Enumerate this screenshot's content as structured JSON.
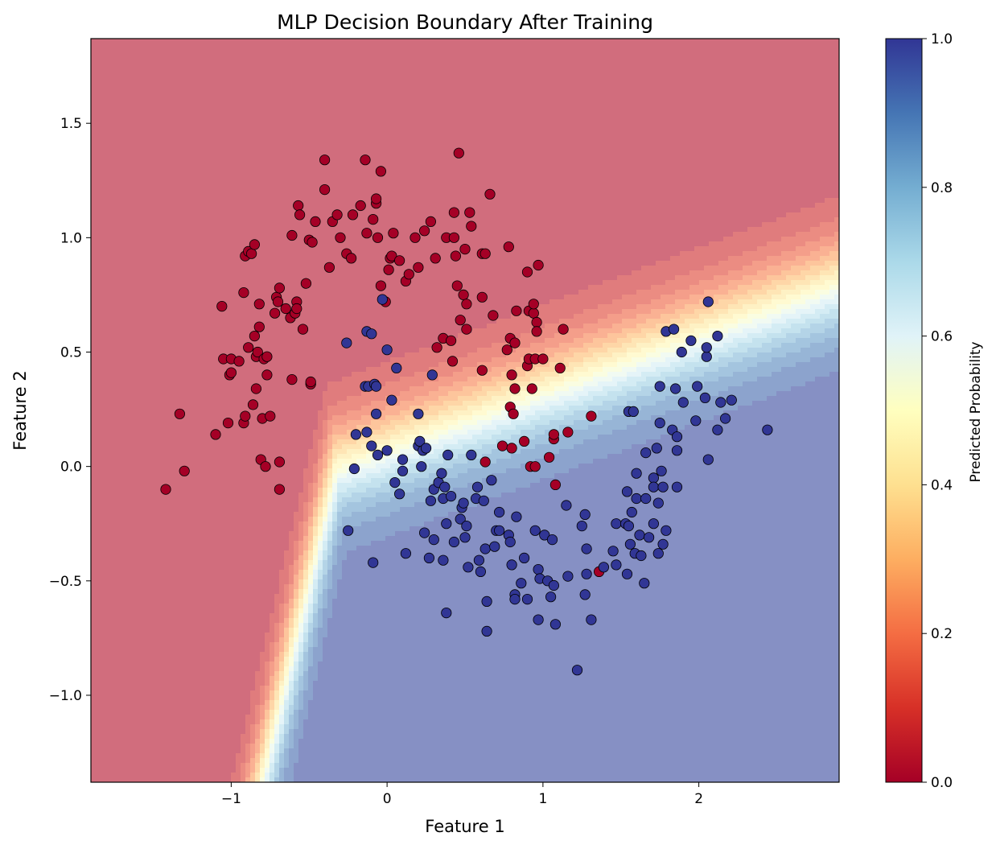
{
  "chart_data": {
    "type": "scatter",
    "title": "MLP Decision Boundary After Training",
    "xlabel": "Feature 1",
    "ylabel": "Feature 2",
    "xlim": [
      -1.9,
      2.9
    ],
    "ylim": [
      -1.38,
      1.87
    ],
    "xticks": [
      -1,
      0,
      1,
      2
    ],
    "xtick_labels": [
      "−1",
      "0",
      "1",
      "2"
    ],
    "yticks": [
      -1.0,
      -0.5,
      0.0,
      0.5,
      1.0,
      1.5
    ],
    "ytick_labels": [
      "−1.0",
      "−0.5",
      "0.0",
      "0.5",
      "1.0",
      "1.5"
    ],
    "grid": false,
    "background": "filled contour of predicted probability",
    "colormap": "RdYlBu",
    "colorbar": {
      "label": "Predicted Probability",
      "range": [
        0,
        1
      ],
      "ticks": [
        0.0,
        0.2,
        0.4,
        0.6,
        0.8,
        1.0
      ],
      "tick_labels": [
        "0.0",
        "0.2",
        "0.4",
        "0.6",
        "0.8",
        "1.0"
      ],
      "colors": [
        "#a50026",
        "#d73027",
        "#f46d43",
        "#fdae61",
        "#fee090",
        "#ffffbf",
        "#e0f3f8",
        "#abd9e9",
        "#74add1",
        "#4575b4",
        "#313695"
      ]
    },
    "series": [
      {
        "class": 0,
        "color": "#a50026",
        "points": [
          [
            -1.42,
            -0.1
          ],
          [
            -1.33,
            0.23
          ],
          [
            -1.3,
            -0.02
          ],
          [
            -1.1,
            0.14
          ],
          [
            -1.06,
            0.7
          ],
          [
            -1.05,
            0.47
          ],
          [
            -1.02,
            0.19
          ],
          [
            -1.01,
            0.4
          ],
          [
            -1.0,
            0.41
          ],
          [
            -1.0,
            0.47
          ],
          [
            -0.95,
            0.46
          ],
          [
            -0.92,
            0.76
          ],
          [
            -0.92,
            0.19
          ],
          [
            -0.91,
            0.92
          ],
          [
            -0.91,
            0.22
          ],
          [
            -0.89,
            0.52
          ],
          [
            -0.89,
            0.94
          ],
          [
            -0.87,
            0.93
          ],
          [
            -0.86,
            0.27
          ],
          [
            -0.85,
            0.57
          ],
          [
            -0.85,
            0.97
          ],
          [
            -0.84,
            0.48
          ],
          [
            -0.84,
            0.34
          ],
          [
            -0.83,
            0.5
          ],
          [
            -0.82,
            0.71
          ],
          [
            -0.82,
            0.61
          ],
          [
            -0.81,
            0.03
          ],
          [
            -0.8,
            0.21
          ],
          [
            -0.79,
            0.47
          ],
          [
            -0.78,
            0.0
          ],
          [
            -0.77,
            0.48
          ],
          [
            -0.77,
            0.4
          ],
          [
            -0.75,
            0.22
          ],
          [
            -0.72,
            0.67
          ],
          [
            -0.71,
            0.74
          ],
          [
            -0.7,
            0.72
          ],
          [
            -0.69,
            -0.1
          ],
          [
            -0.69,
            0.02
          ],
          [
            -0.69,
            0.78
          ],
          [
            -0.65,
            0.69
          ],
          [
            -0.62,
            0.65
          ],
          [
            -0.61,
            1.01
          ],
          [
            -0.61,
            0.38
          ],
          [
            -0.59,
            0.67
          ],
          [
            -0.58,
            0.72
          ],
          [
            -0.58,
            0.69
          ],
          [
            -0.57,
            1.14
          ],
          [
            -0.56,
            1.1
          ],
          [
            -0.54,
            0.6
          ],
          [
            -0.52,
            0.8
          ],
          [
            -0.5,
            0.99
          ],
          [
            -0.49,
            0.36
          ],
          [
            -0.49,
            0.37
          ],
          [
            -0.48,
            0.98
          ],
          [
            -0.46,
            1.07
          ],
          [
            -0.4,
            1.34
          ],
          [
            -0.4,
            1.21
          ],
          [
            -0.37,
            0.87
          ],
          [
            -0.35,
            1.07
          ],
          [
            -0.32,
            1.1
          ],
          [
            -0.3,
            1.0
          ],
          [
            -0.26,
            0.93
          ],
          [
            -0.23,
            0.91
          ],
          [
            -0.22,
            1.1
          ],
          [
            -0.17,
            1.14
          ],
          [
            -0.14,
            1.34
          ],
          [
            -0.13,
            1.02
          ],
          [
            -0.09,
            1.08
          ],
          [
            -0.07,
            1.15
          ],
          [
            -0.07,
            1.17
          ],
          [
            -0.06,
            1.0
          ],
          [
            -0.04,
            1.29
          ],
          [
            -0.04,
            0.79
          ],
          [
            -0.01,
            0.72
          ],
          [
            0.01,
            0.86
          ],
          [
            0.02,
            0.91
          ],
          [
            0.03,
            0.92
          ],
          [
            0.04,
            1.02
          ],
          [
            0.08,
            0.9
          ],
          [
            0.12,
            0.81
          ],
          [
            0.14,
            0.84
          ],
          [
            0.18,
            1.0
          ],
          [
            0.2,
            0.87
          ],
          [
            0.24,
            1.03
          ],
          [
            0.28,
            1.07
          ],
          [
            0.31,
            0.91
          ],
          [
            0.32,
            0.52
          ],
          [
            0.36,
            0.56
          ],
          [
            0.38,
            1.0
          ],
          [
            0.41,
            0.55
          ],
          [
            0.42,
            0.46
          ],
          [
            0.43,
            1.0
          ],
          [
            0.43,
            1.11
          ],
          [
            0.44,
            0.92
          ],
          [
            0.45,
            0.79
          ],
          [
            0.46,
            1.37
          ],
          [
            0.47,
            0.64
          ],
          [
            0.49,
            0.75
          ],
          [
            0.5,
            0.95
          ],
          [
            0.51,
            0.6
          ],
          [
            0.51,
            0.71
          ],
          [
            0.53,
            1.11
          ],
          [
            0.54,
            1.05
          ],
          [
            0.61,
            0.93
          ],
          [
            0.61,
            0.74
          ],
          [
            0.61,
            0.42
          ],
          [
            0.63,
            0.93
          ],
          [
            0.63,
            0.02
          ],
          [
            0.66,
            1.19
          ],
          [
            0.68,
            0.66
          ],
          [
            0.74,
            0.09
          ],
          [
            0.77,
            0.51
          ],
          [
            0.78,
            0.96
          ],
          [
            0.79,
            0.26
          ],
          [
            0.79,
            0.56
          ],
          [
            0.8,
            0.4
          ],
          [
            0.8,
            0.08
          ],
          [
            0.81,
            0.23
          ],
          [
            0.82,
            0.34
          ],
          [
            0.82,
            0.54
          ],
          [
            0.83,
            0.68
          ],
          [
            0.88,
            0.11
          ],
          [
            0.9,
            0.44
          ],
          [
            0.9,
            0.85
          ],
          [
            0.91,
            0.68
          ],
          [
            0.91,
            0.47
          ],
          [
            0.92,
            0.0
          ],
          [
            0.93,
            0.34
          ],
          [
            0.94,
            0.67
          ],
          [
            0.94,
            0.71
          ],
          [
            0.95,
            0.0
          ],
          [
            0.95,
            0.47
          ],
          [
            0.96,
            0.63
          ],
          [
            0.96,
            0.59
          ],
          [
            0.97,
            0.88
          ],
          [
            1.0,
            0.47
          ],
          [
            1.04,
            0.04
          ],
          [
            1.07,
            0.12
          ],
          [
            1.07,
            0.14
          ],
          [
            1.08,
            -0.08
          ],
          [
            1.11,
            0.43
          ],
          [
            1.13,
            0.6
          ],
          [
            1.16,
            0.15
          ],
          [
            1.31,
            0.22
          ],
          [
            1.36,
            -0.46
          ]
        ]
      },
      {
        "class": 1,
        "color": "#313695",
        "points": [
          [
            -0.26,
            0.54
          ],
          [
            -0.25,
            -0.28
          ],
          [
            -0.21,
            -0.01
          ],
          [
            -0.2,
            0.14
          ],
          [
            -0.14,
            0.35
          ],
          [
            -0.13,
            0.59
          ],
          [
            -0.13,
            0.15
          ],
          [
            -0.12,
            0.35
          ],
          [
            -0.1,
            0.09
          ],
          [
            -0.1,
            0.58
          ],
          [
            -0.09,
            -0.42
          ],
          [
            -0.08,
            0.36
          ],
          [
            -0.07,
            0.35
          ],
          [
            -0.07,
            0.23
          ],
          [
            -0.06,
            0.05
          ],
          [
            -0.03,
            0.73
          ],
          [
            0.0,
            0.51
          ],
          [
            0.0,
            0.07
          ],
          [
            0.03,
            0.29
          ],
          [
            0.05,
            -0.07
          ],
          [
            0.06,
            0.43
          ],
          [
            0.08,
            -0.12
          ],
          [
            0.1,
            -0.02
          ],
          [
            0.1,
            0.03
          ],
          [
            0.12,
            -0.38
          ],
          [
            0.2,
            0.09
          ],
          [
            0.2,
            0.23
          ],
          [
            0.21,
            0.11
          ],
          [
            0.22,
            0.0
          ],
          [
            0.23,
            0.07
          ],
          [
            0.24,
            -0.29
          ],
          [
            0.25,
            0.08
          ],
          [
            0.27,
            -0.4
          ],
          [
            0.28,
            -0.15
          ],
          [
            0.29,
            0.4
          ],
          [
            0.3,
            -0.1
          ],
          [
            0.3,
            -0.32
          ],
          [
            0.33,
            -0.07
          ],
          [
            0.35,
            -0.03
          ],
          [
            0.36,
            -0.14
          ],
          [
            0.36,
            -0.41
          ],
          [
            0.37,
            -0.09
          ],
          [
            0.38,
            -0.25
          ],
          [
            0.38,
            -0.64
          ],
          [
            0.39,
            0.05
          ],
          [
            0.41,
            -0.13
          ],
          [
            0.43,
            -0.33
          ],
          [
            0.47,
            -0.23
          ],
          [
            0.48,
            -0.18
          ],
          [
            0.49,
            -0.16
          ],
          [
            0.5,
            -0.31
          ],
          [
            0.51,
            -0.26
          ],
          [
            0.52,
            -0.44
          ],
          [
            0.54,
            0.05
          ],
          [
            0.57,
            -0.14
          ],
          [
            0.58,
            -0.09
          ],
          [
            0.59,
            -0.41
          ],
          [
            0.6,
            -0.46
          ],
          [
            0.62,
            -0.15
          ],
          [
            0.63,
            -0.36
          ],
          [
            0.64,
            -0.59
          ],
          [
            0.64,
            -0.72
          ],
          [
            0.67,
            -0.06
          ],
          [
            0.69,
            -0.35
          ],
          [
            0.7,
            -0.28
          ],
          [
            0.72,
            -0.2
          ],
          [
            0.72,
            -0.28
          ],
          [
            0.78,
            -0.3
          ],
          [
            0.79,
            -0.33
          ],
          [
            0.8,
            -0.43
          ],
          [
            0.82,
            -0.56
          ],
          [
            0.82,
            -0.58
          ],
          [
            0.83,
            -0.22
          ],
          [
            0.86,
            -0.51
          ],
          [
            0.88,
            -0.4
          ],
          [
            0.9,
            -0.58
          ],
          [
            0.95,
            -0.28
          ],
          [
            0.97,
            -0.67
          ],
          [
            0.97,
            -0.45
          ],
          [
            0.98,
            -0.49
          ],
          [
            1.01,
            -0.3
          ],
          [
            1.03,
            -0.5
          ],
          [
            1.05,
            -0.57
          ],
          [
            1.06,
            -0.32
          ],
          [
            1.07,
            -0.52
          ],
          [
            1.08,
            -0.69
          ],
          [
            1.15,
            -0.17
          ],
          [
            1.16,
            -0.48
          ],
          [
            1.22,
            -0.89
          ],
          [
            1.25,
            -0.26
          ],
          [
            1.27,
            -0.21
          ],
          [
            1.27,
            -0.56
          ],
          [
            1.28,
            -0.47
          ],
          [
            1.28,
            -0.36
          ],
          [
            1.31,
            -0.67
          ],
          [
            1.39,
            -0.44
          ],
          [
            1.45,
            -0.37
          ],
          [
            1.47,
            -0.25
          ],
          [
            1.47,
            -0.43
          ],
          [
            1.53,
            -0.25
          ],
          [
            1.54,
            -0.47
          ],
          [
            1.54,
            -0.11
          ],
          [
            1.55,
            0.24
          ],
          [
            1.55,
            -0.26
          ],
          [
            1.56,
            -0.34
          ],
          [
            1.57,
            -0.2
          ],
          [
            1.58,
            0.24
          ],
          [
            1.59,
            -0.38
          ],
          [
            1.6,
            -0.03
          ],
          [
            1.6,
            -0.14
          ],
          [
            1.62,
            -0.3
          ],
          [
            1.63,
            -0.39
          ],
          [
            1.65,
            -0.51
          ],
          [
            1.66,
            0.06
          ],
          [
            1.66,
            -0.14
          ],
          [
            1.68,
            -0.31
          ],
          [
            1.71,
            -0.05
          ],
          [
            1.71,
            -0.25
          ],
          [
            1.71,
            -0.09
          ],
          [
            1.73,
            0.08
          ],
          [
            1.74,
            -0.38
          ],
          [
            1.74,
            -0.16
          ],
          [
            1.75,
            0.19
          ],
          [
            1.75,
            0.35
          ],
          [
            1.76,
            -0.02
          ],
          [
            1.77,
            -0.09
          ],
          [
            1.77,
            -0.34
          ],
          [
            1.79,
            -0.28
          ],
          [
            1.79,
            0.59
          ],
          [
            1.83,
            0.16
          ],
          [
            1.84,
            0.6
          ],
          [
            1.85,
            0.34
          ],
          [
            1.86,
            0.13
          ],
          [
            1.86,
            0.07
          ],
          [
            1.86,
            -0.09
          ],
          [
            1.89,
            0.5
          ],
          [
            1.9,
            0.28
          ],
          [
            1.95,
            0.55
          ],
          [
            1.98,
            0.2
          ],
          [
            1.99,
            0.35
          ],
          [
            2.04,
            0.3
          ],
          [
            2.05,
            0.48
          ],
          [
            2.05,
            0.52
          ],
          [
            2.06,
            0.72
          ],
          [
            2.06,
            0.03
          ],
          [
            2.12,
            0.16
          ],
          [
            2.12,
            0.57
          ],
          [
            2.14,
            0.28
          ],
          [
            2.17,
            0.21
          ],
          [
            2.21,
            0.29
          ],
          [
            2.44,
            0.16
          ]
        ]
      }
    ]
  }
}
